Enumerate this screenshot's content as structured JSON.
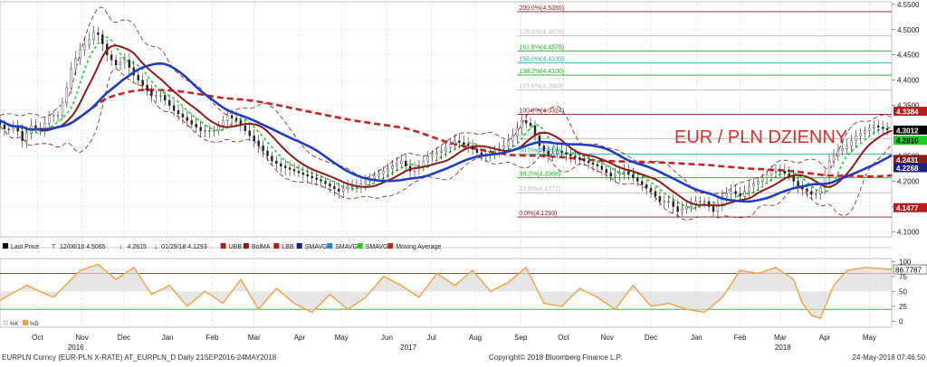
{
  "chart_data": [
    {
      "type": "line",
      "title": "EUR / PLN DZIENNY",
      "security": "EURPLN Curncy (EUR-PLN X-RATE)",
      "ylim": [
        4.09,
        4.555
      ],
      "yticks": [
        4.1,
        4.15,
        4.2,
        4.25,
        4.3,
        4.35,
        4.4,
        4.45,
        4.5,
        4.55
      ],
      "ytick_labels": [
        "4.1000",
        "4.1500",
        "4.2000",
        "4.2500",
        "4.3000",
        "4.3500",
        "4.4000",
        "4.4500",
        "4.5000",
        "4.5500"
      ],
      "x_months": [
        {
          "label": "Oct",
          "t": 0.042
        },
        {
          "label": "Nov",
          "t": 0.092
        },
        {
          "label": "Dec",
          "t": 0.139
        },
        {
          "label": "Jan",
          "t": 0.188
        },
        {
          "label": "Feb",
          "t": 0.238
        },
        {
          "label": "Mar",
          "t": 0.285
        },
        {
          "label": "Apr",
          "t": 0.336
        },
        {
          "label": "May",
          "t": 0.383
        },
        {
          "label": "Jun",
          "t": 0.434
        },
        {
          "label": "Jul",
          "t": 0.484
        },
        {
          "label": "Aug",
          "t": 0.533
        },
        {
          "label": "Sep",
          "t": 0.584
        },
        {
          "label": "Oct",
          "t": 0.632
        },
        {
          "label": "Nov",
          "t": 0.681
        },
        {
          "label": "Dec",
          "t": 0.73
        },
        {
          "label": "Jan",
          "t": 0.781
        },
        {
          "label": "Feb",
          "t": 0.83
        },
        {
          "label": "Mar",
          "t": 0.875
        },
        {
          "label": "Apr",
          "t": 0.925
        },
        {
          "label": "May",
          "t": 0.975
        }
      ],
      "x_years": [
        {
          "label": "2016",
          "t": 0.085
        },
        {
          "label": "2017",
          "t": 0.458
        },
        {
          "label": "2018",
          "t": 0.878
        }
      ],
      "price": [
        [
          0,
          4.32
        ],
        [
          0.012,
          4.3
        ],
        [
          0.022,
          4.31
        ],
        [
          0.03,
          4.28
        ],
        [
          0.04,
          4.31
        ],
        [
          0.05,
          4.3
        ],
        [
          0.06,
          4.33
        ],
        [
          0.07,
          4.33
        ],
        [
          0.078,
          4.37
        ],
        [
          0.086,
          4.43
        ],
        [
          0.095,
          4.46
        ],
        [
          0.105,
          4.48
        ],
        [
          0.112,
          4.5
        ],
        [
          0.118,
          4.48
        ],
        [
          0.125,
          4.45
        ],
        [
          0.135,
          4.43
        ],
        [
          0.145,
          4.44
        ],
        [
          0.155,
          4.41
        ],
        [
          0.165,
          4.39
        ],
        [
          0.175,
          4.37
        ],
        [
          0.185,
          4.37
        ],
        [
          0.2,
          4.34
        ],
        [
          0.215,
          4.32
        ],
        [
          0.23,
          4.3
        ],
        [
          0.245,
          4.3
        ],
        [
          0.26,
          4.33
        ],
        [
          0.27,
          4.32
        ],
        [
          0.28,
          4.3
        ],
        [
          0.29,
          4.28
        ],
        [
          0.3,
          4.26
        ],
        [
          0.31,
          4.24
        ],
        [
          0.32,
          4.23
        ],
        [
          0.335,
          4.22
        ],
        [
          0.35,
          4.21
        ],
        [
          0.365,
          4.2
        ],
        [
          0.375,
          4.19
        ],
        [
          0.385,
          4.18
        ],
        [
          0.395,
          4.19
        ],
        [
          0.405,
          4.19
        ],
        [
          0.415,
          4.2
        ],
        [
          0.425,
          4.21
        ],
        [
          0.435,
          4.22
        ],
        [
          0.445,
          4.23
        ],
        [
          0.455,
          4.24
        ],
        [
          0.465,
          4.22
        ],
        [
          0.475,
          4.23
        ],
        [
          0.485,
          4.25
        ],
        [
          0.5,
          4.26
        ],
        [
          0.515,
          4.28
        ],
        [
          0.53,
          4.27
        ],
        [
          0.545,
          4.25
        ],
        [
          0.56,
          4.26
        ],
        [
          0.57,
          4.27
        ],
        [
          0.58,
          4.29
        ],
        [
          0.59,
          4.32
        ],
        [
          0.6,
          4.31
        ],
        [
          0.61,
          4.27
        ],
        [
          0.62,
          4.25
        ],
        [
          0.63,
          4.26
        ],
        [
          0.645,
          4.25
        ],
        [
          0.66,
          4.24
        ],
        [
          0.675,
          4.23
        ],
        [
          0.69,
          4.21
        ],
        [
          0.705,
          4.22
        ],
        [
          0.72,
          4.2
        ],
        [
          0.735,
          4.18
        ],
        [
          0.745,
          4.16
        ],
        [
          0.755,
          4.16
        ],
        [
          0.765,
          4.14
        ],
        [
          0.775,
          4.15
        ],
        [
          0.785,
          4.16
        ],
        [
          0.795,
          4.16
        ],
        [
          0.805,
          4.14
        ],
        [
          0.815,
          4.17
        ],
        [
          0.825,
          4.18
        ],
        [
          0.835,
          4.17
        ],
        [
          0.845,
          4.19
        ],
        [
          0.855,
          4.2
        ],
        [
          0.87,
          4.22
        ],
        [
          0.88,
          4.22
        ],
        [
          0.89,
          4.21
        ],
        [
          0.9,
          4.19
        ],
        [
          0.91,
          4.18
        ],
        [
          0.918,
          4.17
        ],
        [
          0.926,
          4.19
        ],
        [
          0.935,
          4.24
        ],
        [
          0.945,
          4.26
        ],
        [
          0.955,
          4.27
        ],
        [
          0.965,
          4.29
        ],
        [
          0.975,
          4.3
        ],
        [
          0.985,
          4.31
        ],
        [
          1.0,
          4.3012
        ]
      ],
      "series": [
        {
          "name": "Last Price",
          "last": "4.3012",
          "color": "#000000"
        },
        {
          "name": "UBB",
          "last": "4.3384",
          "color": "#b71c1c"
        },
        {
          "name": "BolMA",
          "last": "4.2431",
          "color": "#8b1a1a"
        },
        {
          "name": "LBB",
          "last": "4.1477",
          "color": "#b71c1c"
        },
        {
          "name": "SMAVG",
          "last": "4.2268",
          "color": "#1a237e"
        },
        {
          "name": "SMAVG",
          "last": "4.2810",
          "color": "#22cc22"
        },
        {
          "name": "Moving Average",
          "color": "#cc2222"
        }
      ],
      "fibonacci": [
        {
          "label": "200.0%(4.5355)",
          "value": 4.5355,
          "color": "#8b1a1a"
        },
        {
          "label": "176.4%(4.4876)",
          "value": 4.4876,
          "color": "#bbbbbb"
        },
        {
          "label": "161.8%(4.4579)",
          "value": 4.4579,
          "color": "#22aa22"
        },
        {
          "label": "150.0%(4.4339)",
          "value": 4.4339,
          "color": "#22aaaa"
        },
        {
          "label": "138.2%(4.4100)",
          "value": 4.41,
          "color": "#22aa22"
        },
        {
          "label": "123.6%(4.3803)",
          "value": 4.3803,
          "color": "#bbbbbb"
        },
        {
          "label": "100.0%(4.3324)",
          "value": 4.3324,
          "color": "#8b1a1a"
        },
        {
          "label": "(4.2845)",
          "value": 4.2845,
          "color": "#bbbbbb"
        },
        {
          "label": "50.0%(4.2539)",
          "value": 4.2539,
          "color": "#22aaaa"
        },
        {
          "label": "38.2%(4.2068)",
          "value": 4.2068,
          "color": "#22aa22"
        },
        {
          "label": "23.6%(4.1772)",
          "value": 4.1772,
          "color": "#bbbbbb"
        },
        {
          "label": "0.0%(4.1293)",
          "value": 4.1293,
          "color": "#8b1a1a"
        }
      ],
      "right_badges": [
        {
          "label": "4.3384",
          "value": 4.3384,
          "bg": "#b71c1c",
          "fg": "#ffffff"
        },
        {
          "label": "4.3012",
          "value": 4.3012,
          "bg": "#000000",
          "fg": "#ffffff"
        },
        {
          "label": "4.2810",
          "value": 4.281,
          "bg": "#22cc22",
          "fg": "#000000"
        },
        {
          "label": "4.2431",
          "value": 4.2431,
          "bg": "#8b1a1a",
          "fg": "#ffffff"
        },
        {
          "label": "4.2268",
          "value": 4.2268,
          "bg": "#1a237e",
          "fg": "#ffffff"
        },
        {
          "label": "4.1477",
          "value": 4.1477,
          "bg": "#b71c1c",
          "fg": "#ffffff"
        }
      ],
      "legend": [
        {
          "label": "Last Price",
          "color": "#000000"
        },
        {
          "label": "12/06/16 4.5065",
          "icon": "T"
        },
        {
          "label": "4.2615",
          "icon": "updown"
        },
        {
          "label": "01/29/18 4.1293",
          "icon": "down"
        },
        {
          "label": "UBB",
          "color": "#b71c1c"
        },
        {
          "label": "BolMA",
          "color": "#8b1a1a"
        },
        {
          "label": "LBB",
          "color": "#b71c1c"
        },
        {
          "label": "SMAVG",
          "color": "#1a237e"
        },
        {
          "label": "SMAVG",
          "color": "#1e88e5"
        },
        {
          "label": "SMAVG",
          "color": "#22cc22"
        },
        {
          "label": "Moving Average",
          "color": "#cc2222"
        }
      ]
    },
    {
      "type": "area",
      "ylim": [
        -10,
        105
      ],
      "yticks": [
        0,
        25,
        50,
        75,
        100
      ],
      "ytick_labels": [
        "0",
        "25",
        "50",
        "75",
        "100"
      ],
      "levels": [
        {
          "value": 80,
          "color": "#b71c1c"
        },
        {
          "value": 20,
          "color": "#22aa22"
        }
      ],
      "legend": [
        {
          "label": "%K",
          "color": "#dddddd"
        },
        {
          "label": "%D",
          "color": "#f5a040"
        }
      ],
      "last_badge": "86.7787",
      "values": [
        [
          0,
          35
        ],
        [
          0.03,
          60
        ],
        [
          0.06,
          40
        ],
        [
          0.09,
          85
        ],
        [
          0.11,
          95
        ],
        [
          0.13,
          70
        ],
        [
          0.15,
          90
        ],
        [
          0.17,
          45
        ],
        [
          0.19,
          60
        ],
        [
          0.21,
          25
        ],
        [
          0.23,
          50
        ],
        [
          0.25,
          30
        ],
        [
          0.27,
          70
        ],
        [
          0.29,
          20
        ],
        [
          0.31,
          55
        ],
        [
          0.33,
          30
        ],
        [
          0.35,
          15
        ],
        [
          0.37,
          45
        ],
        [
          0.39,
          20
        ],
        [
          0.41,
          40
        ],
        [
          0.43,
          75
        ],
        [
          0.45,
          60
        ],
        [
          0.47,
          40
        ],
        [
          0.49,
          80
        ],
        [
          0.51,
          60
        ],
        [
          0.53,
          85
        ],
        [
          0.55,
          50
        ],
        [
          0.57,
          65
        ],
        [
          0.59,
          90
        ],
        [
          0.61,
          30
        ],
        [
          0.63,
          25
        ],
        [
          0.65,
          55
        ],
        [
          0.67,
          40
        ],
        [
          0.69,
          20
        ],
        [
          0.71,
          60
        ],
        [
          0.73,
          25
        ],
        [
          0.75,
          30
        ],
        [
          0.77,
          20
        ],
        [
          0.79,
          15
        ],
        [
          0.81,
          40
        ],
        [
          0.83,
          85
        ],
        [
          0.85,
          80
        ],
        [
          0.87,
          90
        ],
        [
          0.89,
          70
        ],
        [
          0.9,
          30
        ],
        [
          0.91,
          10
        ],
        [
          0.92,
          5
        ],
        [
          0.935,
          60
        ],
        [
          0.95,
          85
        ],
        [
          0.97,
          90
        ],
        [
          1.0,
          86.78
        ]
      ]
    }
  ],
  "footer": {
    "left": "EURPLN Curncy (EUR-PLN X-RATE) AT_EURPLN_D  Daily 21SEP2016-24MAY2018",
    "center": "Copyright© 2018 Bloomberg Finance L.P.",
    "right": "24-May-2018 07:46:50"
  }
}
